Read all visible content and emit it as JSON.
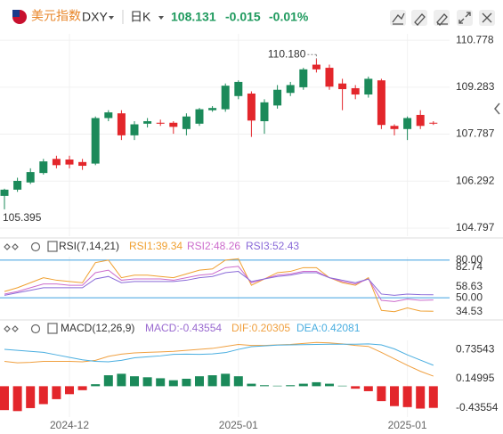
{
  "header": {
    "name": "美元指数",
    "symbol": "DXY",
    "period": "日K",
    "price": 108.131,
    "change": -0.015,
    "change_pct": "-0.01%"
  },
  "chart_data": [
    {
      "type": "candlestick",
      "categories": [
        null,
        null,
        null,
        null,
        null,
        "2024-12",
        null,
        null,
        null,
        null,
        null,
        null,
        null,
        null,
        null,
        null,
        null,
        null,
        "2025-01",
        null,
        null,
        null,
        null,
        null,
        null,
        null,
        null,
        null,
        null,
        null,
        null,
        "2025-01",
        null,
        null
      ],
      "open": [
        105.82,
        106.02,
        106.25,
        106.55,
        107.0,
        106.98,
        106.9,
        106.85,
        108.3,
        108.45,
        107.75,
        108.12,
        108.15,
        108.15,
        107.95,
        108.12,
        108.55,
        108.58,
        109.0,
        109.08,
        108.2,
        108.7,
        109.1,
        109.28,
        110.0,
        109.9,
        109.4,
        109.25,
        109.05,
        109.5,
        108.05,
        107.95,
        108.4,
        108.15
      ],
      "high": [
        106.05,
        106.4,
        106.7,
        107.0,
        107.1,
        107.1,
        107.0,
        108.35,
        108.55,
        108.55,
        108.2,
        108.3,
        108.25,
        108.2,
        108.45,
        108.62,
        108.68,
        109.4,
        109.5,
        109.15,
        108.9,
        109.35,
        109.45,
        109.9,
        110.18,
        110.0,
        109.55,
        109.35,
        109.62,
        109.55,
        108.1,
        108.35,
        108.55,
        108.2
      ],
      "low": [
        105.395,
        105.95,
        106.2,
        106.5,
        106.7,
        106.7,
        106.65,
        106.8,
        108.2,
        107.6,
        107.6,
        108.0,
        108.05,
        107.8,
        107.75,
        108.05,
        108.5,
        108.5,
        108.9,
        107.7,
        107.8,
        108.6,
        109.0,
        109.2,
        109.75,
        109.2,
        108.55,
        108.9,
        108.95,
        107.95,
        107.75,
        107.6,
        107.95,
        108.08
      ],
      "close": [
        106.02,
        106.3,
        106.58,
        106.92,
        106.8,
        106.82,
        106.78,
        108.3,
        108.48,
        107.75,
        108.1,
        108.2,
        108.12,
        108.02,
        108.35,
        108.58,
        108.62,
        109.33,
        109.45,
        108.22,
        108.8,
        109.2,
        109.35,
        109.85,
        109.85,
        109.3,
        109.22,
        109.05,
        109.55,
        108.08,
        107.95,
        108.3,
        108.05,
        108.131
      ],
      "up_color": "#1b8a5a",
      "down_color": "#e3262b",
      "ylim": [
        104.54,
        110.98
      ],
      "yticks": [
        110.778,
        109.283,
        107.787,
        106.292,
        104.797
      ],
      "grid": true,
      "annotations": {
        "max": {
          "value": 110.18,
          "label": "110.180"
        },
        "min": 105.395
      }
    },
    {
      "type": "line",
      "title": "RSI(7,14,21)",
      "series": [
        {
          "name": "RSI1:39.34",
          "color": "#f0a030",
          "values": [
            55,
            58,
            62,
            66,
            64,
            63,
            62,
            78,
            80,
            66,
            68,
            68,
            67,
            66,
            69,
            72,
            73,
            80,
            81,
            60,
            65,
            70,
            71,
            74,
            74,
            66,
            62,
            60,
            66,
            40,
            39,
            42,
            39.5,
            39.34
          ]
        },
        {
          "name": "RSI2:48.26",
          "color": "#cc6ccc",
          "values": [
            53,
            55,
            58,
            61,
            61,
            60,
            60,
            70,
            72,
            64,
            65,
            65,
            65,
            64,
            66,
            68,
            69,
            74,
            75,
            62,
            65,
            68,
            69,
            71,
            71,
            66,
            63,
            61,
            65,
            48,
            47,
            49,
            48,
            48.26
          ]
        },
        {
          "name": "RSI3:52.43",
          "color": "#8a6ad8",
          "values": [
            52,
            54,
            56,
            58,
            58,
            58,
            58,
            65,
            67,
            62,
            63,
            63,
            63,
            63,
            64,
            66,
            67,
            70,
            71,
            63,
            65,
            67,
            68,
            70,
            70,
            66,
            64,
            62,
            65,
            53,
            52,
            53,
            52.5,
            52.43
          ]
        }
      ],
      "ylim": [
        34.53,
        82.74
      ],
      "yticks": [
        {
          "value": 80,
          "label": "80.00"
        },
        82.74,
        58.63,
        {
          "value": 50,
          "label": "50.00"
        },
        34.53
      ],
      "levels": [
        80,
        50
      ],
      "level_color": "#3fa0e0"
    },
    {
      "type": "combo",
      "title": "MACD(12,26,9)",
      "series": [
        {
          "name": "MACD:-0.43554",
          "type": "bar",
          "color": "#9a6ad0",
          "up_color": "#1b8a5a",
          "down_color": "#e3262b",
          "values": [
            -0.48,
            -0.5,
            -0.44,
            -0.36,
            -0.26,
            -0.16,
            -0.08,
            0.04,
            0.22,
            0.25,
            0.2,
            0.18,
            0.16,
            0.12,
            0.15,
            0.2,
            0.22,
            0.25,
            0.2,
            0.05,
            0.02,
            0.01,
            0.02,
            0.05,
            0.08,
            0.05,
            0.01,
            -0.05,
            -0.1,
            -0.3,
            -0.4,
            -0.42,
            -0.45,
            -0.43554
          ]
        },
        {
          "name": "DIF:0.20305",
          "type": "line",
          "color": "#f0a040",
          "values": [
            0.5,
            0.47,
            0.48,
            0.5,
            0.5,
            0.5,
            0.49,
            0.52,
            0.6,
            0.645,
            0.67,
            0.68,
            0.69,
            0.7,
            0.72,
            0.74,
            0.76,
            0.8,
            0.84,
            0.82,
            0.82,
            0.83,
            0.84,
            0.86,
            0.88,
            0.87,
            0.85,
            0.82,
            0.8,
            0.68,
            0.55,
            0.42,
            0.3,
            0.20305
          ]
        },
        {
          "name": "DEA:0.42081",
          "type": "line",
          "color": "#4aaee0",
          "values": [
            0.74,
            0.72,
            0.7,
            0.68,
            0.63,
            0.58,
            0.53,
            0.5,
            0.49,
            0.52,
            0.57,
            0.59,
            0.61,
            0.64,
            0.645,
            0.64,
            0.65,
            0.675,
            0.74,
            0.795,
            0.81,
            0.825,
            0.83,
            0.835,
            0.84,
            0.845,
            0.845,
            0.845,
            0.85,
            0.83,
            0.75,
            0.63,
            0.525,
            0.42081
          ]
        }
      ],
      "ylim": [
        -0.62,
        0.92
      ],
      "yticks": [
        0.73543,
        0.14995,
        -0.43554
      ]
    }
  ]
}
